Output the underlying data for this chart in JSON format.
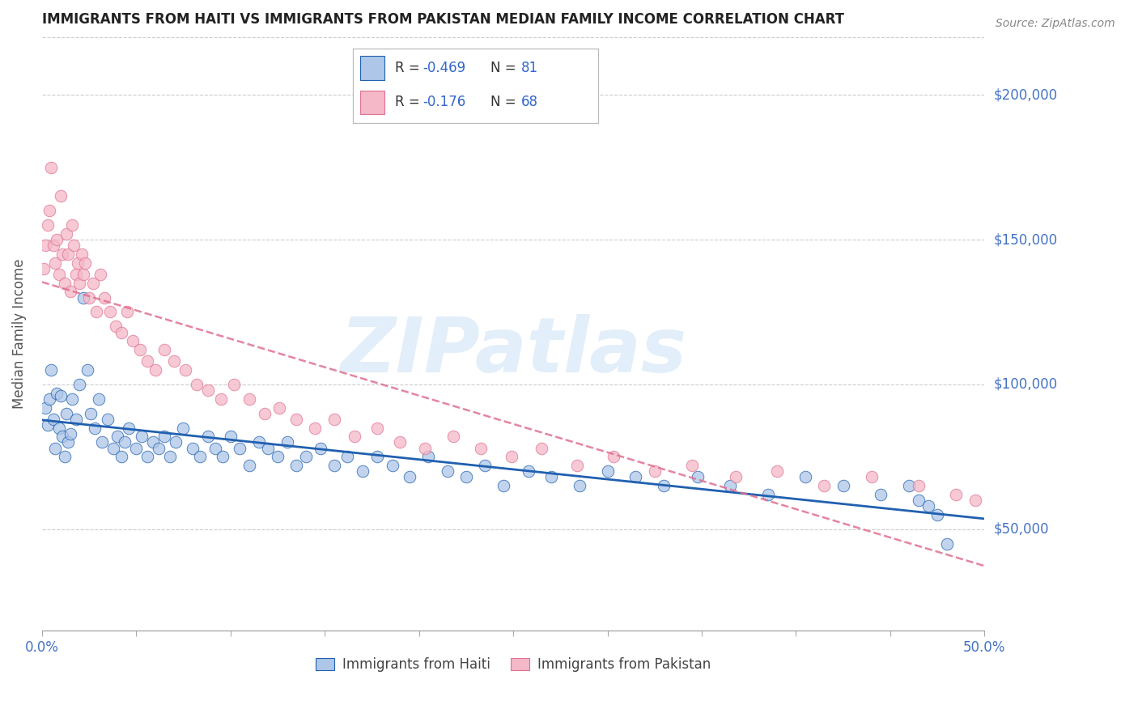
{
  "title": "IMMIGRANTS FROM HAITI VS IMMIGRANTS FROM PAKISTAN MEDIAN FAMILY INCOME CORRELATION CHART",
  "source": "Source: ZipAtlas.com",
  "ylabel": "Median Family Income",
  "xmin": 0.0,
  "xmax": 0.5,
  "ymin": 15000,
  "ymax": 220000,
  "background_color": "#ffffff",
  "watermark_text": "ZIPatlas",
  "haiti_color": "#aec6e8",
  "pakistan_color": "#f4b8c8",
  "haiti_line_color": "#2060b0",
  "pakistan_line_color": "#e07090",
  "haiti_label": "Immigrants from Haiti",
  "pakistan_label": "Immigrants from Pakistan",
  "legend_r1_label": "R = ",
  "legend_r1_val": "-0.469",
  "legend_n1_label": "N = ",
  "legend_n1_val": "81",
  "legend_r2_label": "R = ",
  "legend_r2_val": "-0.176",
  "legend_n2_label": "N = ",
  "legend_n2_val": "68",
  "ytick_positions": [
    50000,
    100000,
    150000,
    200000
  ],
  "ytick_labels": [
    "$50,000",
    "$100,000",
    "$150,000",
    "$200,000"
  ],
  "haiti_x": [
    0.002,
    0.003,
    0.004,
    0.005,
    0.006,
    0.007,
    0.008,
    0.009,
    0.01,
    0.011,
    0.012,
    0.013,
    0.014,
    0.015,
    0.016,
    0.018,
    0.02,
    0.022,
    0.024,
    0.026,
    0.028,
    0.03,
    0.032,
    0.035,
    0.038,
    0.04,
    0.042,
    0.044,
    0.046,
    0.05,
    0.053,
    0.056,
    0.059,
    0.062,
    0.065,
    0.068,
    0.071,
    0.075,
    0.08,
    0.084,
    0.088,
    0.092,
    0.096,
    0.1,
    0.105,
    0.11,
    0.115,
    0.12,
    0.125,
    0.13,
    0.135,
    0.14,
    0.148,
    0.155,
    0.162,
    0.17,
    0.178,
    0.186,
    0.195,
    0.205,
    0.215,
    0.225,
    0.235,
    0.245,
    0.258,
    0.27,
    0.285,
    0.3,
    0.315,
    0.33,
    0.348,
    0.365,
    0.385,
    0.405,
    0.425,
    0.445,
    0.46,
    0.465,
    0.47,
    0.475,
    0.48
  ],
  "haiti_y": [
    92000,
    86000,
    95000,
    105000,
    88000,
    78000,
    97000,
    85000,
    96000,
    82000,
    75000,
    90000,
    80000,
    83000,
    95000,
    88000,
    100000,
    130000,
    105000,
    90000,
    85000,
    95000,
    80000,
    88000,
    78000,
    82000,
    75000,
    80000,
    85000,
    78000,
    82000,
    75000,
    80000,
    78000,
    82000,
    75000,
    80000,
    85000,
    78000,
    75000,
    82000,
    78000,
    75000,
    82000,
    78000,
    72000,
    80000,
    78000,
    75000,
    80000,
    72000,
    75000,
    78000,
    72000,
    75000,
    70000,
    75000,
    72000,
    68000,
    75000,
    70000,
    68000,
    72000,
    65000,
    70000,
    68000,
    65000,
    70000,
    68000,
    65000,
    68000,
    65000,
    62000,
    68000,
    65000,
    62000,
    65000,
    60000,
    58000,
    55000,
    45000
  ],
  "pakistan_x": [
    0.001,
    0.002,
    0.003,
    0.004,
    0.005,
    0.006,
    0.007,
    0.008,
    0.009,
    0.01,
    0.011,
    0.012,
    0.013,
    0.014,
    0.015,
    0.016,
    0.017,
    0.018,
    0.019,
    0.02,
    0.021,
    0.022,
    0.023,
    0.025,
    0.027,
    0.029,
    0.031,
    0.033,
    0.036,
    0.039,
    0.042,
    0.045,
    0.048,
    0.052,
    0.056,
    0.06,
    0.065,
    0.07,
    0.076,
    0.082,
    0.088,
    0.095,
    0.102,
    0.11,
    0.118,
    0.126,
    0.135,
    0.145,
    0.155,
    0.166,
    0.178,
    0.19,
    0.203,
    0.218,
    0.233,
    0.249,
    0.265,
    0.284,
    0.303,
    0.325,
    0.345,
    0.368,
    0.39,
    0.415,
    0.44,
    0.465,
    0.485,
    0.495
  ],
  "pakistan_y": [
    140000,
    148000,
    155000,
    160000,
    175000,
    148000,
    142000,
    150000,
    138000,
    165000,
    145000,
    135000,
    152000,
    145000,
    132000,
    155000,
    148000,
    138000,
    142000,
    135000,
    145000,
    138000,
    142000,
    130000,
    135000,
    125000,
    138000,
    130000,
    125000,
    120000,
    118000,
    125000,
    115000,
    112000,
    108000,
    105000,
    112000,
    108000,
    105000,
    100000,
    98000,
    95000,
    100000,
    95000,
    90000,
    92000,
    88000,
    85000,
    88000,
    82000,
    85000,
    80000,
    78000,
    82000,
    78000,
    75000,
    78000,
    72000,
    75000,
    70000,
    72000,
    68000,
    70000,
    65000,
    68000,
    65000,
    62000,
    60000
  ]
}
